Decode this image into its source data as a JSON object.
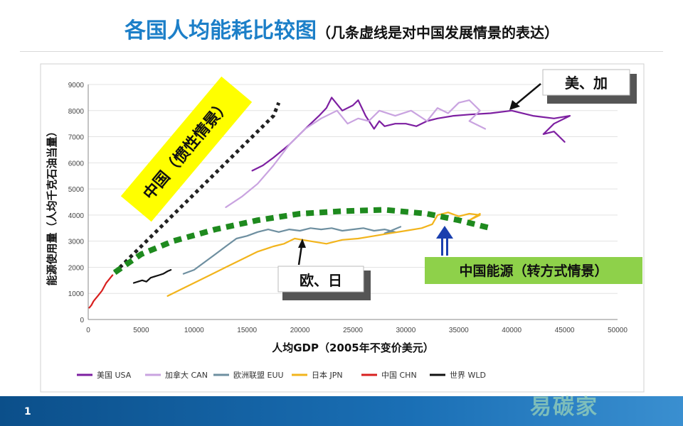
{
  "slide": {
    "title": "各国人均能耗比较图",
    "subtitle": "（几条虚线是对中国发展情景的表达）",
    "page_number": "1",
    "watermark": "易碳家"
  },
  "annotations": {
    "us_ca": "美、加",
    "eu_jp": "欧、日",
    "china_inertia": "中国（惯性情景）",
    "china_transform": "中国能源（转方式情景）"
  },
  "colors": {
    "USA": "#7d1fa1",
    "CAN": "#c9a3e0",
    "EUU": "#6e8fa0",
    "JPN": "#f2b41c",
    "CHN": "#d8201f",
    "WLD": "#111111",
    "inertia": "#222222",
    "transform": "#1e8a1e"
  },
  "chart_data": {
    "type": "line",
    "title": "",
    "xlabel": "人均GDP（2005年不变价美元）",
    "ylabel": "能源使用量（人均千克石油当量）",
    "xlim": [
      0,
      50000
    ],
    "ylim": [
      0,
      9000
    ],
    "xticks": [
      0,
      5000,
      10000,
      15000,
      20000,
      25000,
      30000,
      35000,
      40000,
      45000,
      50000
    ],
    "yticks": [
      0,
      1000,
      2000,
      3000,
      4000,
      5000,
      6000,
      7000,
      8000,
      9000
    ],
    "grid": true,
    "legend": "bottom",
    "series": [
      {
        "key": "USA",
        "name": "美国 USA",
        "x": [
          15500,
          16500,
          17500,
          19000,
          20500,
          21800,
          22500,
          23000,
          24000,
          25000,
          25500,
          26200,
          27000,
          27500,
          28000,
          29000,
          30000,
          31000,
          32000,
          33000,
          34500,
          36000,
          38000,
          40000,
          42000,
          44000,
          45500,
          44000,
          43000,
          44000,
          45000
        ],
        "y": [
          5700,
          5900,
          6200,
          6700,
          7300,
          7800,
          8100,
          8500,
          8000,
          8200,
          8400,
          7800,
          7300,
          7600,
          7400,
          7500,
          7500,
          7400,
          7600,
          7700,
          7800,
          7850,
          7900,
          8000,
          7800,
          7700,
          7800,
          7500,
          7100,
          7200,
          6800
        ]
      },
      {
        "key": "CAN",
        "name": "加拿大 CAN",
        "x": [
          13000,
          14500,
          16000,
          17500,
          19000,
          20500,
          22000,
          23500,
          24500,
          25500,
          26500,
          27500,
          29000,
          30500,
          32000,
          33000,
          34000,
          35000,
          36000,
          37000,
          36000,
          37500
        ],
        "y": [
          4300,
          4700,
          5200,
          5900,
          6700,
          7300,
          7700,
          8000,
          7500,
          7700,
          7600,
          8000,
          7800,
          8000,
          7600,
          8100,
          7900,
          8300,
          8400,
          8000,
          7600,
          7300
        ]
      },
      {
        "key": "EUU",
        "name": "欧洲联盟 EUU",
        "x": [
          9000,
          10000,
          11000,
          12000,
          13000,
          14000,
          15000,
          16000,
          17000,
          18000,
          19000,
          20000,
          21000,
          22000,
          23000,
          24000,
          25000,
          26000,
          27000,
          28000,
          29000,
          28000,
          29500
        ],
        "y": [
          1750,
          1900,
          2200,
          2500,
          2800,
          3100,
          3200,
          3350,
          3450,
          3350,
          3450,
          3400,
          3500,
          3450,
          3500,
          3400,
          3450,
          3500,
          3400,
          3450,
          3350,
          3300,
          3550
        ]
      },
      {
        "key": "JPN",
        "name": "日本 JPN",
        "x": [
          7500,
          8500,
          10000,
          11500,
          13000,
          14500,
          16000,
          17500,
          18500,
          19500,
          21000,
          22500,
          24000,
          25500,
          27000,
          28500,
          30000,
          31500,
          32500,
          33000,
          34000,
          35000,
          36000,
          37000,
          36000,
          37000
        ],
        "y": [
          900,
          1100,
          1400,
          1700,
          2000,
          2300,
          2600,
          2800,
          2900,
          3100,
          3000,
          2900,
          3050,
          3100,
          3200,
          3300,
          3400,
          3500,
          3650,
          4000,
          4100,
          3950,
          4050,
          4000,
          3800,
          4050
        ]
      },
      {
        "key": "CHN",
        "name": "中国 CHN",
        "x": [
          100,
          300,
          500,
          700,
          900,
          1100,
          1300,
          1500,
          1700,
          1900,
          2100,
          2300
        ],
        "y": [
          450,
          550,
          700,
          800,
          900,
          1000,
          1100,
          1250,
          1400,
          1500,
          1600,
          1700
        ]
      },
      {
        "key": "WLD",
        "name": "世界 WLD",
        "x": [
          4300,
          4700,
          5100,
          5500,
          5900,
          6300,
          6700,
          7100,
          7500,
          7800
        ],
        "y": [
          1400,
          1450,
          1500,
          1450,
          1600,
          1650,
          1700,
          1750,
          1850,
          1900
        ]
      },
      {
        "key": "inertia",
        "dashed": "dotted",
        "x": [
          2500,
          5000,
          7500,
          10000,
          12500,
          15000,
          17500,
          18000
        ],
        "y": [
          1800,
          2800,
          3800,
          4800,
          5800,
          6800,
          7800,
          8300
        ]
      },
      {
        "key": "transform",
        "dashed": "thick",
        "x": [
          2500,
          5000,
          8000,
          12000,
          16000,
          20000,
          24000,
          28000,
          32000,
          35000,
          38000
        ],
        "y": [
          1800,
          2500,
          3000,
          3450,
          3800,
          4050,
          4150,
          4200,
          4050,
          3800,
          3500
        ]
      }
    ]
  }
}
